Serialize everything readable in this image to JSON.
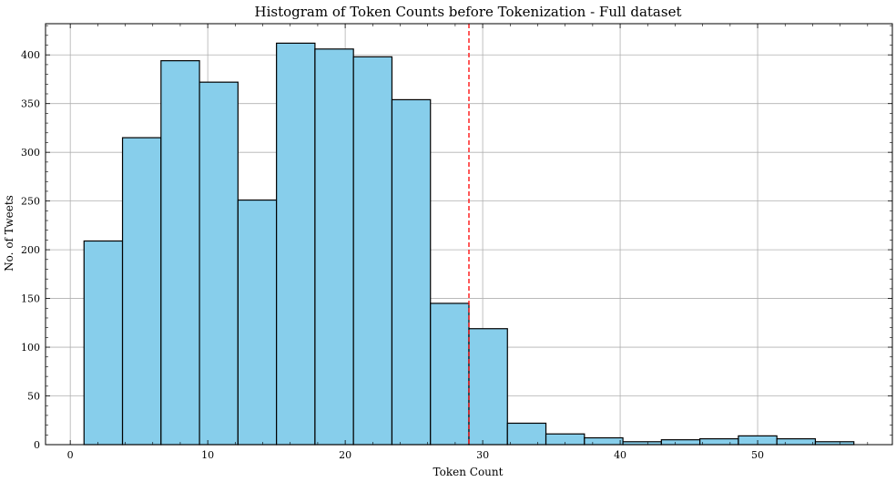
{
  "chart_data": {
    "type": "bar",
    "title": "Histogram of Token Counts before Tokenization - Full dataset",
    "xlabel": "Token Count",
    "ylabel": "No. of Tweets",
    "xlim": [
      -1.8,
      59.8
    ],
    "ylim": [
      0,
      432
    ],
    "x_ticks": [
      0,
      10,
      20,
      30,
      40,
      50
    ],
    "y_ticks": [
      0,
      50,
      100,
      150,
      200,
      250,
      300,
      350,
      400
    ],
    "grid": true,
    "bar_color": "#87CEEB",
    "edge_color": "#000000",
    "threshold_line": {
      "x": 29,
      "color": "#FF0000",
      "style": "dashed"
    },
    "bins": [
      {
        "start": 1.0,
        "end": 3.8,
        "count": 209
      },
      {
        "start": 3.8,
        "end": 6.6,
        "count": 315
      },
      {
        "start": 6.6,
        "end": 9.4,
        "count": 394
      },
      {
        "start": 9.4,
        "end": 12.2,
        "count": 372
      },
      {
        "start": 12.2,
        "end": 15.0,
        "count": 251
      },
      {
        "start": 15.0,
        "end": 17.8,
        "count": 412
      },
      {
        "start": 17.8,
        "end": 20.6,
        "count": 406
      },
      {
        "start": 20.6,
        "end": 23.4,
        "count": 398
      },
      {
        "start": 23.4,
        "end": 26.2,
        "count": 354
      },
      {
        "start": 26.2,
        "end": 29.0,
        "count": 145
      },
      {
        "start": 29.0,
        "end": 31.8,
        "count": 119
      },
      {
        "start": 31.8,
        "end": 34.6,
        "count": 22
      },
      {
        "start": 34.6,
        "end": 37.4,
        "count": 11
      },
      {
        "start": 37.4,
        "end": 40.2,
        "count": 7
      },
      {
        "start": 40.2,
        "end": 43.0,
        "count": 3
      },
      {
        "start": 43.0,
        "end": 45.8,
        "count": 5
      },
      {
        "start": 45.8,
        "end": 48.6,
        "count": 6
      },
      {
        "start": 48.6,
        "end": 51.4,
        "count": 9
      },
      {
        "start": 51.4,
        "end": 54.2,
        "count": 6
      },
      {
        "start": 54.2,
        "end": 57.0,
        "count": 3
      }
    ]
  }
}
